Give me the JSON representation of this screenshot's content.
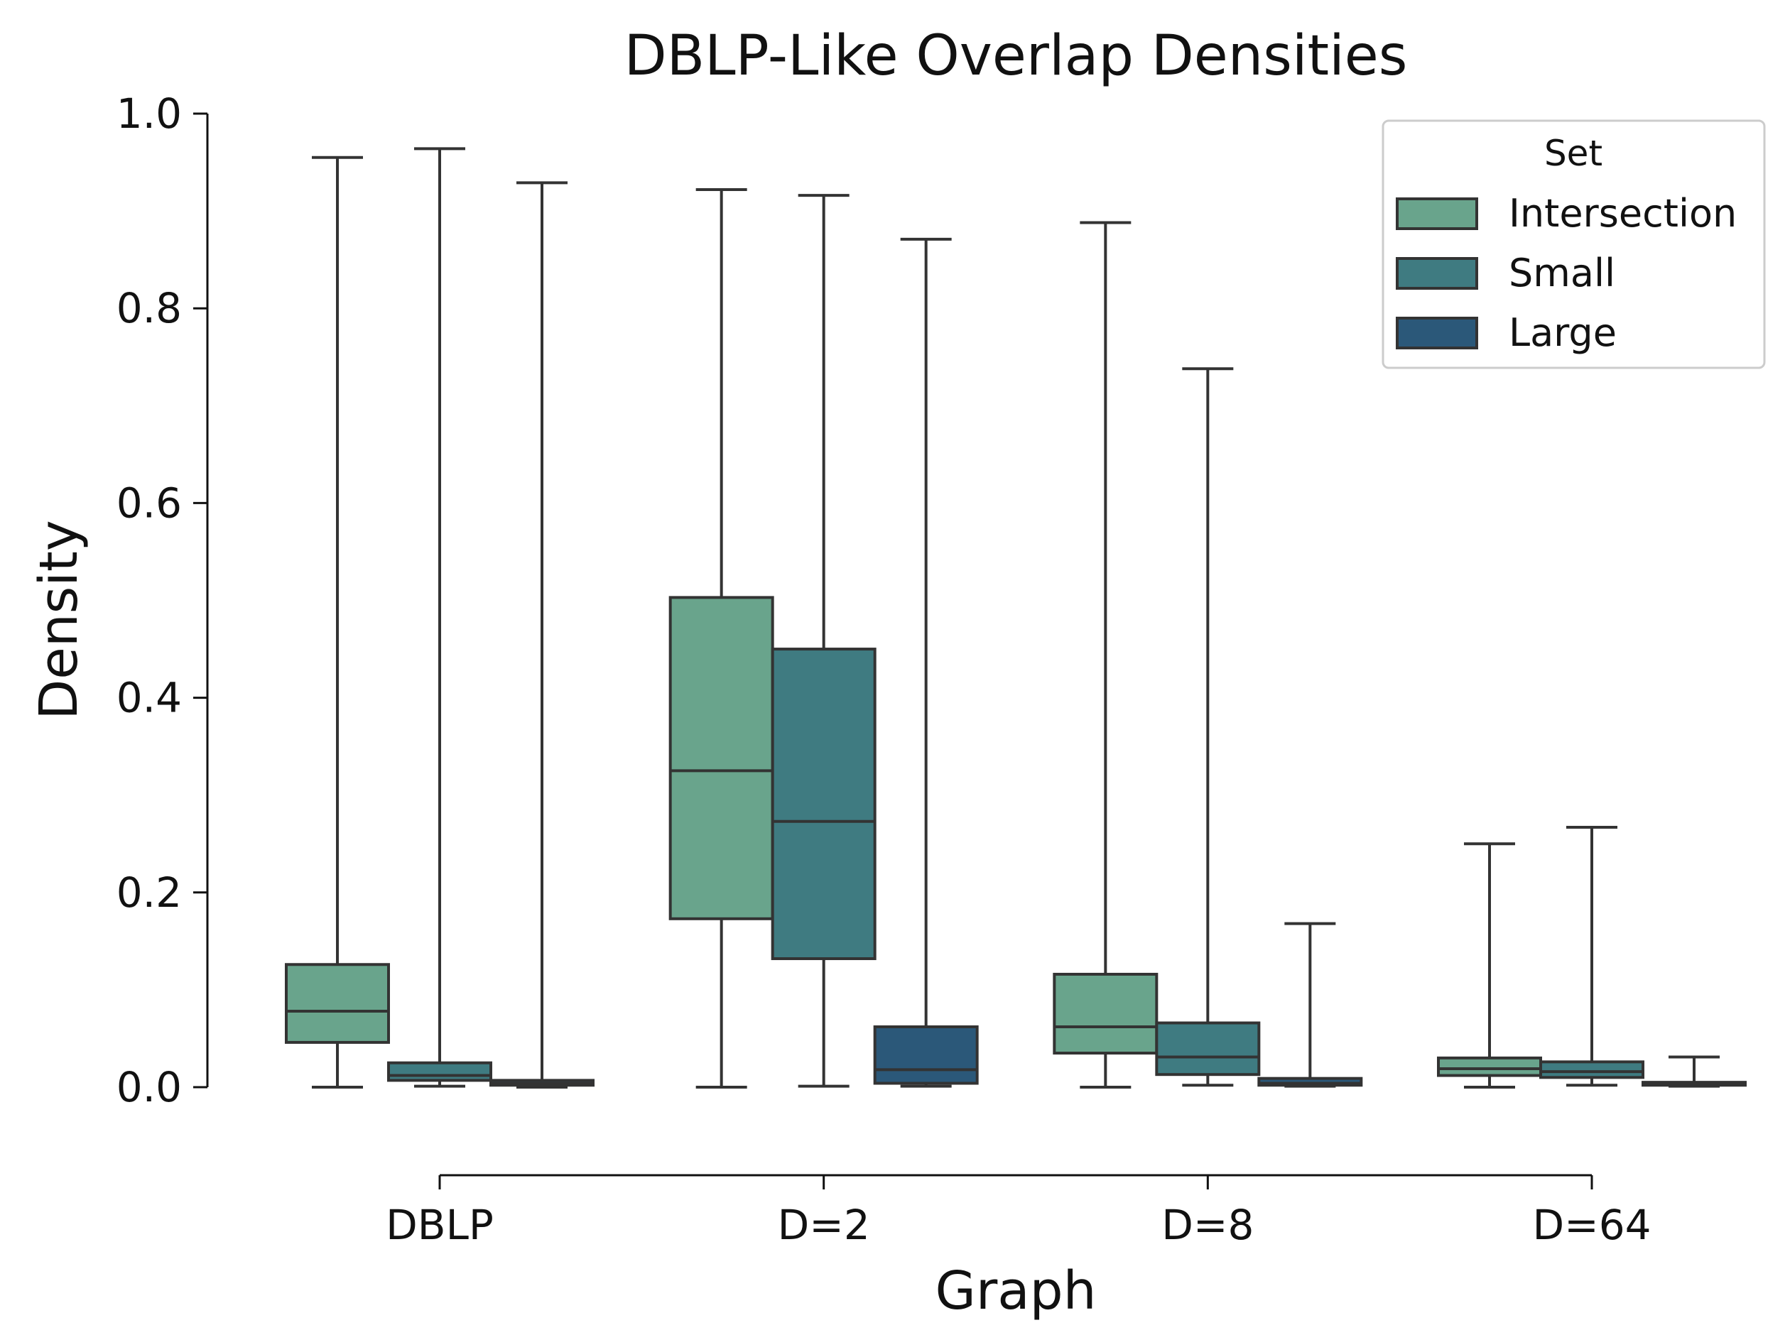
{
  "chart_data": {
    "type": "box",
    "title": "DBLP-Like Overlap Densities",
    "xlabel": "Graph",
    "ylabel": "Density",
    "ylim": [
      0,
      1.0
    ],
    "yticks": [
      "0.0",
      "0.2",
      "0.4",
      "0.6",
      "0.8",
      "1.0"
    ],
    "categories": [
      "DBLP",
      "D=2",
      "D=8",
      "D=64"
    ],
    "legend": {
      "title": "Set",
      "position": "top-right"
    },
    "series": [
      {
        "name": "Intersection",
        "color": "#69a48c",
        "boxes": [
          {
            "whislo": 0.0,
            "q1": 0.046,
            "med": 0.078,
            "q3": 0.126,
            "whishi": 0.955
          },
          {
            "whislo": 0.0,
            "q1": 0.173,
            "med": 0.325,
            "q3": 0.503,
            "whishi": 0.922
          },
          {
            "whislo": 0.0,
            "q1": 0.035,
            "med": 0.062,
            "q3": 0.116,
            "whishi": 0.888
          },
          {
            "whislo": 0.0,
            "q1": 0.012,
            "med": 0.019,
            "q3": 0.03,
            "whishi": 0.25
          }
        ]
      },
      {
        "name": "Small",
        "color": "#3f7b81",
        "boxes": [
          {
            "whislo": 0.001,
            "q1": 0.007,
            "med": 0.012,
            "q3": 0.025,
            "whishi": 0.964
          },
          {
            "whislo": 0.001,
            "q1": 0.132,
            "med": 0.273,
            "q3": 0.45,
            "whishi": 0.916
          },
          {
            "whislo": 0.002,
            "q1": 0.013,
            "med": 0.031,
            "q3": 0.066,
            "whishi": 0.738
          },
          {
            "whislo": 0.002,
            "q1": 0.01,
            "med": 0.016,
            "q3": 0.026,
            "whishi": 0.267
          }
        ]
      },
      {
        "name": "Large",
        "color": "#2b5879",
        "boxes": [
          {
            "whislo": 0.0,
            "q1": 0.002,
            "med": 0.004,
            "q3": 0.007,
            "whishi": 0.929
          },
          {
            "whislo": 0.001,
            "q1": 0.004,
            "med": 0.018,
            "q3": 0.062,
            "whishi": 0.871
          },
          {
            "whislo": 0.001,
            "q1": 0.002,
            "med": 0.004,
            "q3": 0.009,
            "whishi": 0.168
          },
          {
            "whislo": 0.001,
            "q1": 0.002,
            "med": 0.003,
            "q3": 0.005,
            "whishi": 0.031
          }
        ]
      }
    ]
  }
}
